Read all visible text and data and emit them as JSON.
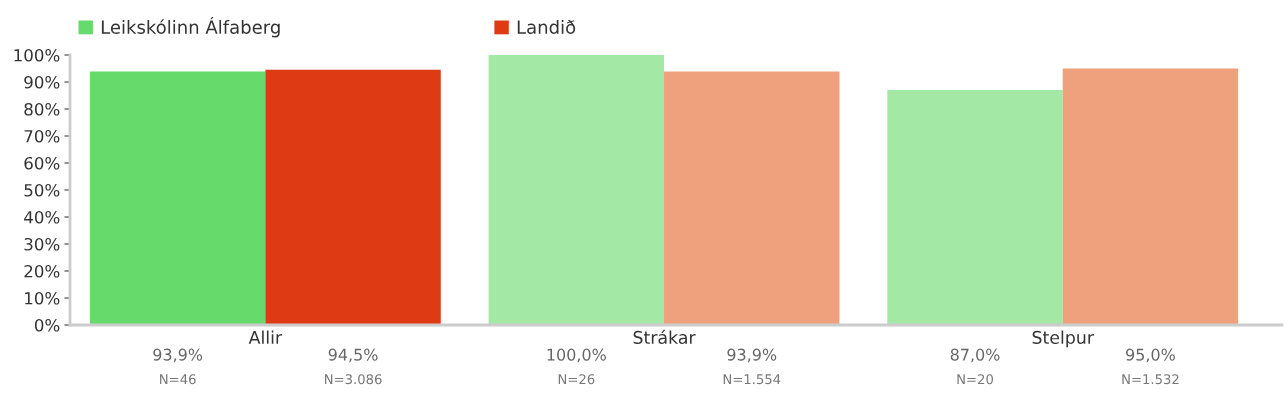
{
  "chart_data": {
    "type": "bar",
    "categories": [
      "Allir",
      "Strákar",
      "Stelpur"
    ],
    "series": [
      {
        "name": "Leikskólinn Álfaberg",
        "color": "#66da6a",
        "colors": [
          "#66da6a",
          "#a4e8a5",
          "#a4e8a5"
        ],
        "values": [
          93.9,
          100.0,
          87.0
        ],
        "value_labels": [
          "93,9%",
          "100,0%",
          "87,0%"
        ]
      },
      {
        "name": "Landið",
        "color": "#de3a14",
        "colors": [
          "#de3a14",
          "#eea17c",
          "#eea17c"
        ],
        "values": [
          94.5,
          93.9,
          95.0
        ],
        "value_labels": [
          "94,5%",
          "93,9%",
          "95,0%"
        ]
      }
    ],
    "ylim": [
      0,
      100
    ],
    "yticks": [
      {
        "value": 0,
        "label": "0%"
      },
      {
        "value": 10,
        "label": "10%"
      },
      {
        "value": 20,
        "label": "20%"
      },
      {
        "value": 30,
        "label": "30%"
      },
      {
        "value": 40,
        "label": "40%"
      },
      {
        "value": 50,
        "label": "50%"
      },
      {
        "value": 60,
        "label": "60%"
      },
      {
        "value": 70,
        "label": "70%"
      },
      {
        "value": 80,
        "label": "80%"
      },
      {
        "value": 90,
        "label": "90%"
      },
      {
        "value": 100,
        "label": "100%"
      }
    ],
    "annotations": [
      "N=46",
      "N=3.086",
      "N=26",
      "N=1.554",
      "N=20",
      "N=1.532"
    ],
    "legend": "top left",
    "grid": false
  }
}
